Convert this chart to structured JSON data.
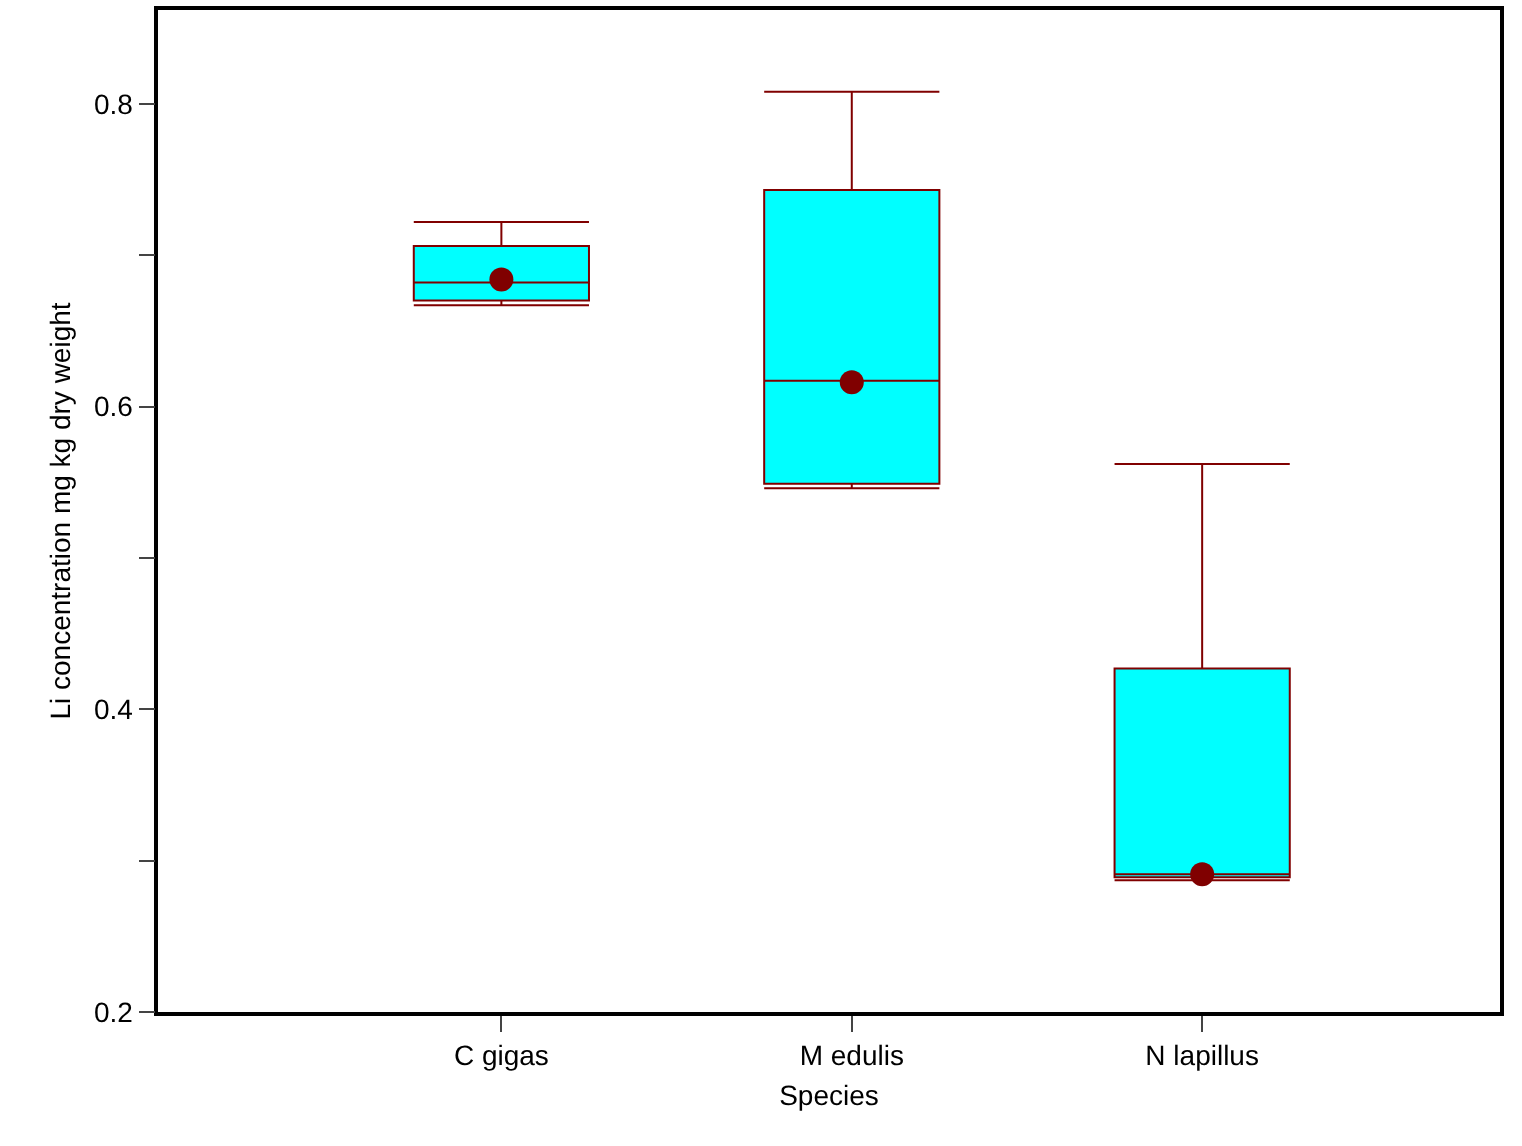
{
  "chart_data": {
    "type": "box",
    "xlabel": "Species",
    "ylabel": "Li concentration mg kg dry weight",
    "categories": [
      "C gigas",
      "M edulis",
      "N lapillus"
    ],
    "series": [
      {
        "color": "#00ffff",
        "boxes": [
          {
            "low": 0.667,
            "q1": 0.67,
            "median": 0.682,
            "q3": 0.706,
            "high": 0.722
          },
          {
            "low": 0.546,
            "q1": 0.549,
            "median": 0.617,
            "q3": 0.743,
            "high": 0.808
          },
          {
            "low": 0.287,
            "q1": 0.289,
            "median": 0.291,
            "q3": 0.427,
            "high": 0.562
          }
        ]
      },
      {
        "type": "scatter",
        "color": "#800000",
        "x": [
          "C gigas",
          "M edulis",
          "N lapillus"
        ],
        "values": [
          0.684,
          0.616,
          0.291
        ]
      }
    ],
    "marker": "circle",
    "ylim": [
      0.2,
      0.862
    ],
    "yticks": [
      0.2,
      {
        "value": 0.3,
        "label": null
      },
      0.4,
      {
        "value": 0.5,
        "label": null
      },
      0.6,
      {
        "value": 0.7,
        "label": null
      },
      0.8
    ],
    "grid": false
  }
}
